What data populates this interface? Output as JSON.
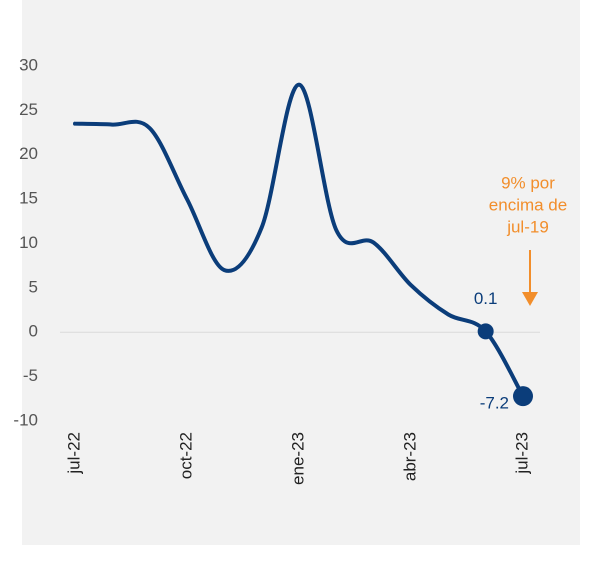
{
  "chart_data": {
    "type": "line",
    "categories": [
      "jul-22",
      null,
      null,
      "oct-22",
      null,
      null,
      "ene-23",
      null,
      null,
      "abr-23",
      null,
      null,
      "jul-23"
    ],
    "series": [
      {
        "color": "#0b3d7a",
        "values": [
          23.5,
          23.4,
          23.0,
          15,
          7,
          11.8,
          27.9,
          11.5,
          10.1,
          5.3,
          2,
          0.1,
          -7.2
        ]
      }
    ],
    "ylim": [
      -10,
      30
    ],
    "yticks": [
      30,
      25,
      20,
      15,
      10,
      5,
      0,
      -5,
      -10
    ],
    "zero_line": true,
    "labeled_points": [
      11,
      12
    ],
    "annotation": {
      "lines": [
        "9% por",
        "encima de",
        "jul-19"
      ],
      "color": "#f28e2b"
    }
  }
}
